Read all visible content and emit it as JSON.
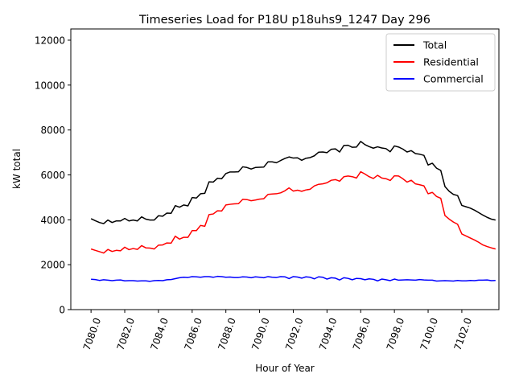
{
  "chart_data": {
    "type": "line",
    "title": "Timeseries Load for P18U p18uhs9_1247  Day 296",
    "xlabel": "Hour of Year",
    "ylabel": "kW total",
    "xlim": [
      7078.8,
      7104.2
    ],
    "ylim": [
      0,
      12500
    ],
    "xticks": [
      7080,
      7082,
      7084,
      7086,
      7088,
      7090,
      7092,
      7094,
      7096,
      7098,
      7100,
      7102
    ],
    "xtick_labels": [
      "7080.0",
      "7082.0",
      "7084.0",
      "7086.0",
      "7088.0",
      "7090.0",
      "7092.0",
      "7094.0",
      "7096.0",
      "7098.0",
      "7100.0",
      "7102.0"
    ],
    "yticks": [
      0,
      2000,
      4000,
      6000,
      8000,
      10000,
      12000
    ],
    "ytick_labels": [
      "0",
      "2000",
      "4000",
      "6000",
      "8000",
      "10000",
      "12000"
    ],
    "legend_position": "top-right",
    "x_start": 7080,
    "x_step": 0.25,
    "series": [
      {
        "name": "Total",
        "color": "#000000",
        "values": [
          4050,
          3960,
          3880,
          3830,
          3990,
          3880,
          3950,
          3950,
          4060,
          3950,
          3990,
          3950,
          4130,
          4030,
          3990,
          3990,
          4180,
          4160,
          4300,
          4290,
          4630,
          4560,
          4660,
          4620,
          4990,
          4970,
          5160,
          5180,
          5690,
          5680,
          5850,
          5830,
          6060,
          6130,
          6130,
          6140,
          6360,
          6330,
          6260,
          6330,
          6340,
          6350,
          6580,
          6580,
          6540,
          6640,
          6730,
          6800,
          6750,
          6760,
          6650,
          6740,
          6770,
          6850,
          7010,
          7020,
          6990,
          7140,
          7160,
          7020,
          7310,
          7320,
          7230,
          7240,
          7490,
          7350,
          7260,
          7190,
          7250,
          7200,
          7170,
          7030,
          7290,
          7240,
          7150,
          7020,
          7080,
          6950,
          6920,
          6870,
          6440,
          6520,
          6300,
          6200,
          5480,
          5270,
          5130,
          5080,
          4640,
          4580,
          4520,
          4430,
          4320,
          4210,
          4110,
          4030,
          3990
        ]
      },
      {
        "name": "Residential",
        "color": "#ff0000",
        "values": [
          2700,
          2640,
          2580,
          2520,
          2680,
          2590,
          2640,
          2620,
          2780,
          2670,
          2720,
          2680,
          2850,
          2750,
          2740,
          2700,
          2870,
          2880,
          2970,
          2960,
          3270,
          3140,
          3220,
          3220,
          3520,
          3520,
          3750,
          3710,
          4230,
          4260,
          4400,
          4390,
          4660,
          4690,
          4710,
          4720,
          4910,
          4900,
          4850,
          4880,
          4920,
          4940,
          5130,
          5150,
          5160,
          5200,
          5290,
          5420,
          5280,
          5320,
          5270,
          5330,
          5360,
          5510,
          5580,
          5600,
          5650,
          5760,
          5790,
          5720,
          5920,
          5950,
          5920,
          5860,
          6140,
          6040,
          5920,
          5840,
          5980,
          5860,
          5830,
          5750,
          5960,
          5950,
          5830,
          5680,
          5760,
          5600,
          5560,
          5510,
          5160,
          5220,
          5040,
          4960,
          4190,
          4030,
          3900,
          3800,
          3370,
          3280,
          3190,
          3100,
          3000,
          2880,
          2810,
          2750,
          2700
        ]
      },
      {
        "name": "Commercial",
        "color": "#0000ff",
        "values": [
          1350,
          1340,
          1300,
          1330,
          1310,
          1290,
          1310,
          1320,
          1280,
          1290,
          1290,
          1270,
          1280,
          1280,
          1260,
          1290,
          1300,
          1290,
          1330,
          1340,
          1380,
          1420,
          1440,
          1430,
          1470,
          1460,
          1440,
          1470,
          1470,
          1440,
          1480,
          1470,
          1440,
          1450,
          1430,
          1430,
          1460,
          1450,
          1420,
          1460,
          1440,
          1420,
          1470,
          1440,
          1430,
          1470,
          1460,
          1380,
          1470,
          1450,
          1400,
          1460,
          1440,
          1370,
          1460,
          1440,
          1360,
          1420,
          1400,
          1320,
          1420,
          1390,
          1330,
          1390,
          1380,
          1330,
          1370,
          1350,
          1280,
          1360,
          1330,
          1290,
          1360,
          1310,
          1320,
          1330,
          1320,
          1310,
          1340,
          1320,
          1310,
          1310,
          1270,
          1280,
          1290,
          1280,
          1270,
          1300,
          1280,
          1280,
          1300,
          1290,
          1310,
          1310,
          1320,
          1290,
          1300
        ]
      }
    ]
  }
}
